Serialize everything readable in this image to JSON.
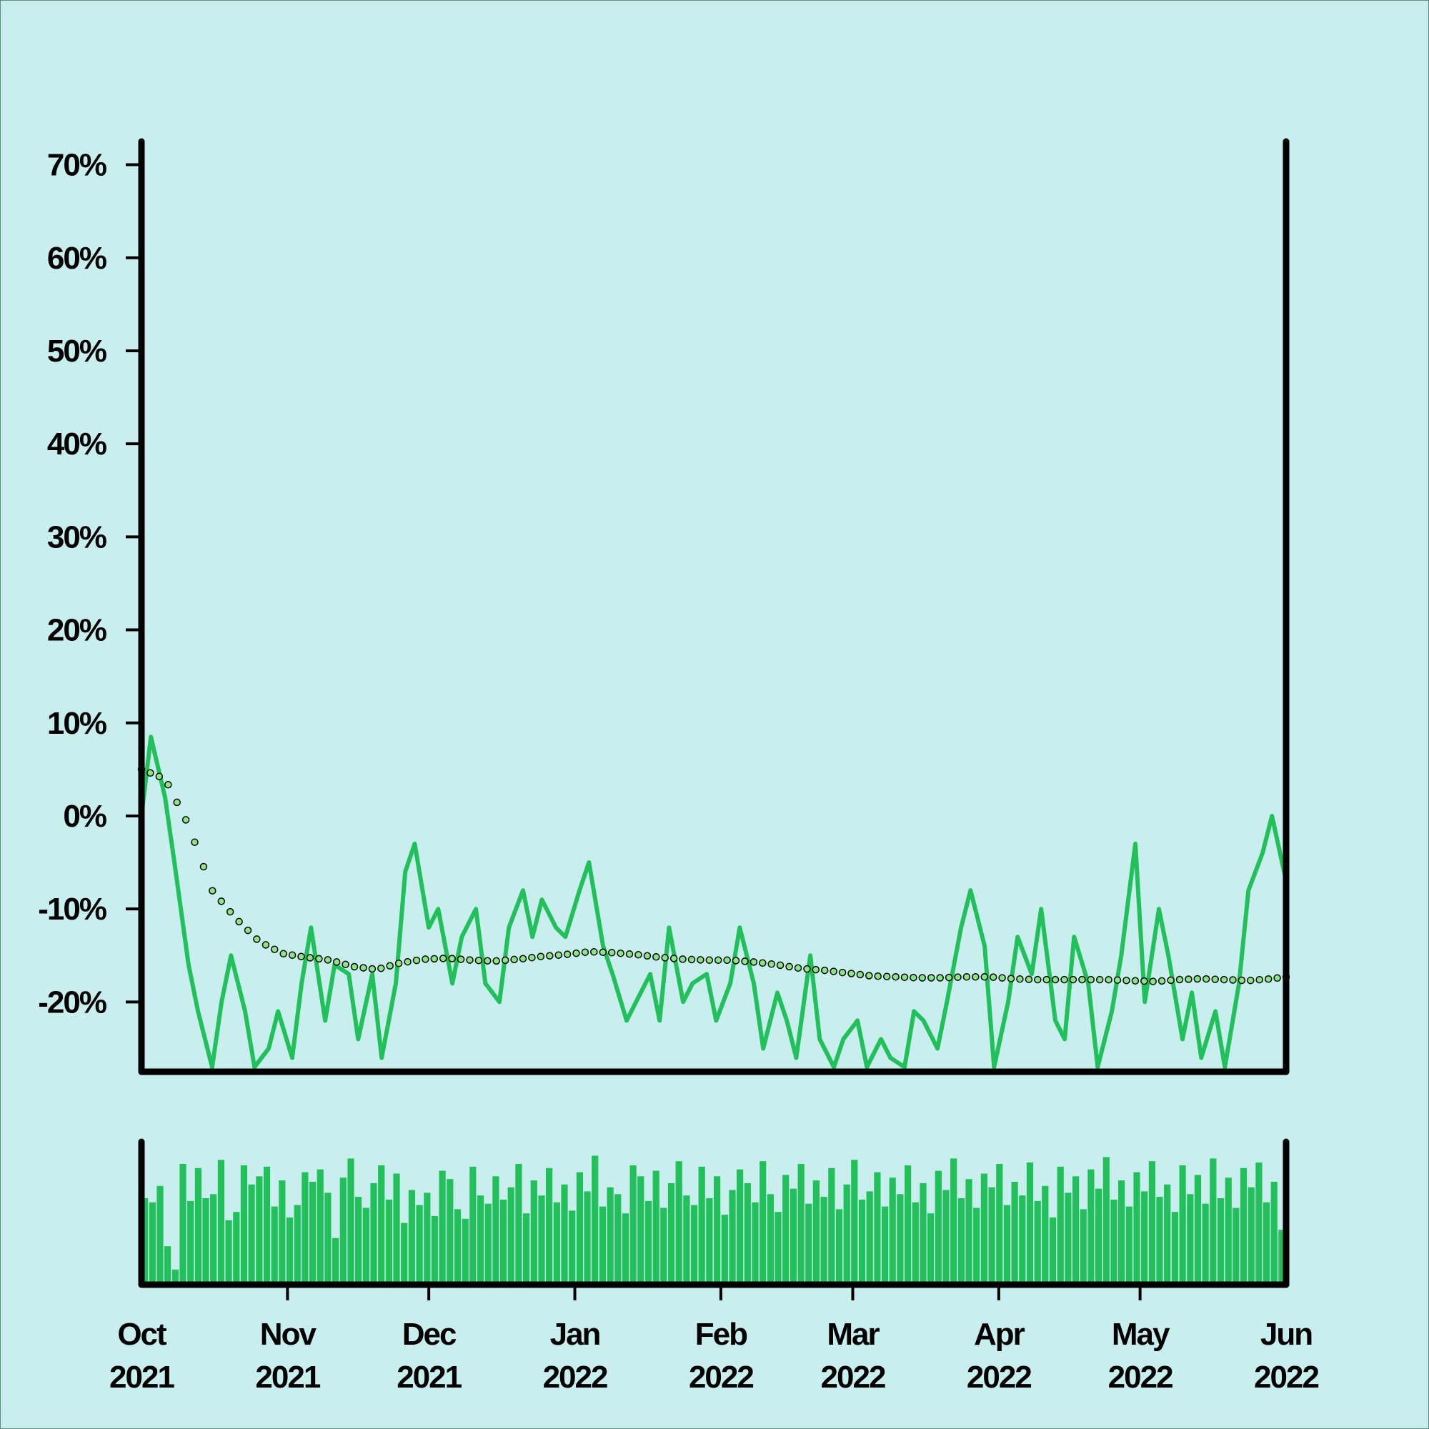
{
  "chart_data": {
    "type": "line",
    "title": "",
    "xlabel": "",
    "ylabel": "",
    "x_range": [
      "2021-10-01",
      "2022-06-01"
    ],
    "ylim": [
      -27.5,
      72.5
    ],
    "y_ticks": [
      -20,
      -10,
      0,
      10,
      20,
      30,
      40,
      50,
      60,
      70
    ],
    "y_tick_labels": [
      "-20%",
      "-10%",
      "0%",
      "10%",
      "20%",
      "30%",
      "40%",
      "50%",
      "60%",
      "70%"
    ],
    "x_ticks": [
      "2021-10-01",
      "2021-11-01",
      "2021-12-01",
      "2022-01-01",
      "2022-02-01",
      "2022-03-01",
      "2022-04-01",
      "2022-05-01",
      "2022-06-01"
    ],
    "x_tick_labels": [
      [
        "Oct",
        "2021"
      ],
      [
        "Nov",
        "2021"
      ],
      [
        "Dec",
        "2021"
      ],
      [
        "Jan",
        "2022"
      ],
      [
        "Feb",
        "2022"
      ],
      [
        "Mar",
        "2022"
      ],
      [
        "Apr",
        "2022"
      ],
      [
        "May",
        "2022"
      ],
      [
        "Jun",
        "2022"
      ]
    ],
    "grid": false,
    "legend": "none",
    "colors": {
      "background": "#c8eeee",
      "line": "#22c05a",
      "bars": "#22c05a",
      "trend_marker": "#88e888",
      "axis": "#000000"
    },
    "series": [
      {
        "style": "solid line",
        "x": [
          "2021-10-01",
          "2021-10-03",
          "2021-10-06",
          "2021-10-08",
          "2021-10-11",
          "2021-10-13",
          "2021-10-16",
          "2021-10-18",
          "2021-10-20",
          "2021-10-23",
          "2021-10-25",
          "2021-10-28",
          "2021-10-30",
          "2021-11-02",
          "2021-11-04",
          "2021-11-06",
          "2021-11-09",
          "2021-11-11",
          "2021-11-14",
          "2021-11-16",
          "2021-11-19",
          "2021-11-21",
          "2021-11-24",
          "2021-11-26",
          "2021-11-28",
          "2021-12-01",
          "2021-12-03",
          "2021-12-06",
          "2021-12-08",
          "2021-12-11",
          "2021-12-13",
          "2021-12-16",
          "2021-12-18",
          "2021-12-21",
          "2021-12-23",
          "2021-12-25",
          "2021-12-28",
          "2021-12-30",
          "2022-01-02",
          "2022-01-04",
          "2022-01-07",
          "2022-01-09",
          "2022-01-12",
          "2022-01-14",
          "2022-01-17",
          "2022-01-19",
          "2022-01-21",
          "2022-01-24",
          "2022-01-26",
          "2022-01-29",
          "2022-01-31",
          "2022-02-03",
          "2022-02-05",
          "2022-02-08",
          "2022-02-10",
          "2022-02-13",
          "2022-02-15",
          "2022-02-17",
          "2022-02-20",
          "2022-02-22",
          "2022-02-25",
          "2022-02-27",
          "2022-03-02",
          "2022-03-04",
          "2022-03-07",
          "2022-03-09",
          "2022-03-12",
          "2022-03-14",
          "2022-03-16",
          "2022-03-19",
          "2022-03-21",
          "2022-03-24",
          "2022-03-26",
          "2022-03-29",
          "2022-03-31",
          "2022-04-03",
          "2022-04-05",
          "2022-04-08",
          "2022-04-10",
          "2022-04-13",
          "2022-04-15",
          "2022-04-17",
          "2022-04-20",
          "2022-04-22",
          "2022-04-25",
          "2022-04-27",
          "2022-04-30",
          "2022-05-02",
          "2022-05-05",
          "2022-05-07",
          "2022-05-10",
          "2022-05-12",
          "2022-05-14",
          "2022-05-17",
          "2022-05-19",
          "2022-05-22",
          "2022-05-24",
          "2022-05-27",
          "2022-05-29",
          "2022-06-01"
        ],
        "values": [
          0,
          8.5,
          2,
          -5,
          -16,
          -21,
          -27,
          -20,
          -15,
          -21,
          -27,
          -25,
          -21,
          -26,
          -18,
          -12,
          -22,
          -16,
          -17,
          -24,
          -17,
          -26,
          -18,
          -6,
          -3,
          -12,
          -10,
          -18,
          -13,
          -10,
          -18,
          -20,
          -12,
          -8,
          -13,
          -9,
          -12,
          -13,
          -8,
          -5,
          -14,
          -17,
          -22,
          -20,
          -17,
          -22,
          -12,
          -20,
          -18,
          -17,
          -22,
          -18,
          -12,
          -18,
          -25,
          -19,
          -22,
          -26,
          -15,
          -24,
          -27,
          -24,
          -22,
          -27,
          -24,
          -26,
          -27,
          -21,
          -22,
          -25,
          -20,
          -12,
          -8,
          -14,
          -27,
          -20,
          -13,
          -17,
          -10,
          -22,
          -24,
          -13,
          -18,
          -27,
          -21,
          -15,
          -3,
          -20,
          -10,
          -15,
          -24,
          -19,
          -26,
          -21,
          -27,
          -18,
          -8,
          -4,
          0,
          -7
        ]
      },
      {
        "style": "dotted trend (circle markers)",
        "x": [
          "2021-10-01",
          "2021-10-06",
          "2021-10-11",
          "2021-10-16",
          "2021-10-21",
          "2021-10-26",
          "2021-10-31",
          "2021-11-05",
          "2021-11-10",
          "2021-11-15",
          "2021-11-20",
          "2021-11-25",
          "2021-11-30",
          "2021-12-05",
          "2021-12-10",
          "2021-12-15",
          "2021-12-20",
          "2021-12-25",
          "2021-12-30",
          "2022-01-04",
          "2022-01-09",
          "2022-01-14",
          "2022-01-19",
          "2022-01-24",
          "2022-01-29",
          "2022-02-03",
          "2022-02-08",
          "2022-02-13",
          "2022-02-18",
          "2022-02-23",
          "2022-02-28",
          "2022-03-05",
          "2022-03-10",
          "2022-03-15",
          "2022-03-20",
          "2022-03-25",
          "2022-03-30",
          "2022-04-04",
          "2022-04-09",
          "2022-04-14",
          "2022-04-19",
          "2022-04-24",
          "2022-04-29",
          "2022-05-04",
          "2022-05-09",
          "2022-05-14",
          "2022-05-19",
          "2022-05-24",
          "2022-05-29",
          "2022-06-01"
        ],
        "values": [
          5,
          4,
          -1,
          -8,
          -11,
          -13.5,
          -14.8,
          -15.2,
          -15.5,
          -16.2,
          -16.5,
          -15.8,
          -15.4,
          -15.3,
          -15.5,
          -15.6,
          -15.4,
          -15.1,
          -14.9,
          -14.6,
          -14.7,
          -14.9,
          -15.2,
          -15.4,
          -15.5,
          -15.5,
          -15.7,
          -16,
          -16.4,
          -16.6,
          -16.9,
          -17.2,
          -17.3,
          -17.4,
          -17.4,
          -17.3,
          -17.3,
          -17.5,
          -17.6,
          -17.6,
          -17.6,
          -17.6,
          -17.7,
          -17.8,
          -17.6,
          -17.5,
          -17.6,
          -17.7,
          -17.5,
          -17.3
        ]
      }
    ],
    "volume_panel": {
      "type": "bar",
      "note_values": "relative heights, 0-1",
      "values": [
        0.63,
        0.6,
        0.72,
        0.28,
        0.11,
        0.88,
        0.61,
        0.85,
        0.63,
        0.66,
        0.91,
        0.47,
        0.53,
        0.87,
        0.73,
        0.79,
        0.86,
        0.57,
        0.76,
        0.49,
        0.58,
        0.82,
        0.75,
        0.84,
        0.67,
        0.34,
        0.78,
        0.92,
        0.64,
        0.56,
        0.74,
        0.87,
        0.62,
        0.81,
        0.45,
        0.69,
        0.58,
        0.67,
        0.5,
        0.83,
        0.77,
        0.55,
        0.48,
        0.86,
        0.65,
        0.59,
        0.79,
        0.62,
        0.71,
        0.88,
        0.52,
        0.76,
        0.65,
        0.85,
        0.6,
        0.73,
        0.54,
        0.82,
        0.68,
        0.94,
        0.57,
        0.71,
        0.66,
        0.52,
        0.87,
        0.79,
        0.61,
        0.83,
        0.56,
        0.74,
        0.9,
        0.65,
        0.58,
        0.86,
        0.63,
        0.79,
        0.51,
        0.69,
        0.84,
        0.74,
        0.6,
        0.9,
        0.66,
        0.53,
        0.8,
        0.7,
        0.88,
        0.59,
        0.76,
        0.64,
        0.85,
        0.55,
        0.73,
        0.91,
        0.62,
        0.68,
        0.82,
        0.57,
        0.78,
        0.66,
        0.87,
        0.6,
        0.74,
        0.52,
        0.83,
        0.69,
        0.92,
        0.63,
        0.77,
        0.56,
        0.81,
        0.71,
        0.88,
        0.58,
        0.75,
        0.65,
        0.89,
        0.61,
        0.72,
        0.49,
        0.86,
        0.67,
        0.79,
        0.55,
        0.84,
        0.7,
        0.93,
        0.62,
        0.76,
        0.57,
        0.82,
        0.68,
        0.9,
        0.64,
        0.73,
        0.53,
        0.87,
        0.66,
        0.8,
        0.59,
        0.92,
        0.63,
        0.78,
        0.56,
        0.85,
        0.71,
        0.89,
        0.6,
        0.75,
        0.4
      ]
    }
  }
}
